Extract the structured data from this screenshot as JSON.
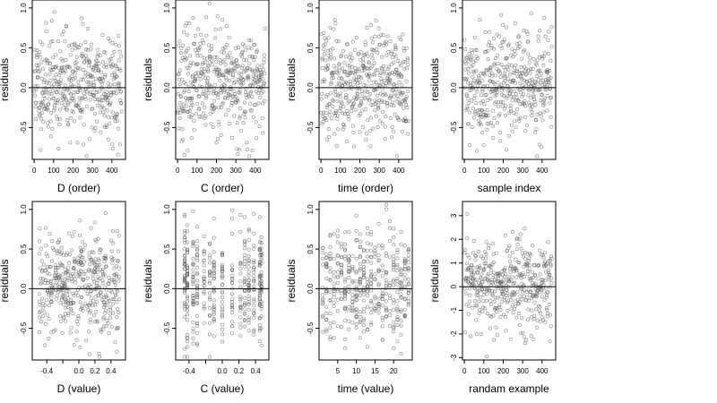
{
  "chart_data": [
    {
      "type": "scatter",
      "xlabel": "D (order)",
      "ylabel": "residuals",
      "xlim": [
        -10,
        470
      ],
      "ylim": [
        -0.9,
        1.1
      ],
      "xticks": [
        0,
        100,
        200,
        300,
        400
      ],
      "xtick_labels": [
        "0",
        "100",
        "200",
        "300",
        "400"
      ],
      "yticks": [
        -0.5,
        0,
        0.5,
        1.0
      ],
      "ytick_labels": [
        "-0.5",
        "0.0",
        "0.5",
        "1.0"
      ],
      "hline": 0,
      "points": {
        "n": 450,
        "xmode": "index",
        "ymean": 0.05,
        "ysd": 0.33,
        "seed": 11
      }
    },
    {
      "type": "scatter",
      "xlabel": "C (order)",
      "ylabel": "residuals",
      "xlim": [
        -10,
        470
      ],
      "ylim": [
        -0.9,
        1.1
      ],
      "xticks": [
        0,
        100,
        200,
        300,
        400
      ],
      "xtick_labels": [
        "0",
        "100",
        "200",
        "300",
        "400"
      ],
      "yticks": [
        -0.5,
        0,
        0.5,
        1.0
      ],
      "ytick_labels": [
        "-0.5",
        "0.0",
        "0.5",
        "1.0"
      ],
      "hline": 0,
      "points": {
        "n": 450,
        "xmode": "index",
        "ymean": 0.05,
        "ysd": 0.33,
        "seed": 23
      }
    },
    {
      "type": "scatter",
      "xlabel": "time (order)",
      "ylabel": "residuals",
      "xlim": [
        -10,
        470
      ],
      "ylim": [
        -0.9,
        1.1
      ],
      "xticks": [
        0,
        100,
        200,
        300,
        400
      ],
      "xtick_labels": [
        "0",
        "100",
        "200",
        "300",
        "400"
      ],
      "yticks": [
        -0.5,
        0,
        0.5,
        1.0
      ],
      "ytick_labels": [
        "-0.5",
        "0.0",
        "0.5",
        "1.0"
      ],
      "hline": 0,
      "points": {
        "n": 450,
        "xmode": "index",
        "ymean": 0.05,
        "ysd": 0.33,
        "seed": 37
      }
    },
    {
      "type": "scatter",
      "xlabel": "sample index",
      "ylabel": "residuals",
      "xlim": [
        -10,
        470
      ],
      "ylim": [
        -0.9,
        1.1
      ],
      "xticks": [
        0,
        100,
        200,
        300,
        400
      ],
      "xtick_labels": [
        "0",
        "100",
        "200",
        "300",
        "400"
      ],
      "yticks": [
        -0.5,
        0,
        0.5,
        1.0
      ],
      "ytick_labels": [
        "-0.5",
        "0.0",
        "0.5",
        "1.0"
      ],
      "hline": 0,
      "points": {
        "n": 450,
        "xmode": "index",
        "ymean": 0.05,
        "ysd": 0.33,
        "seed": 41
      }
    },
    {
      "type": "scatter",
      "xlabel": "D (value)",
      "ylabel": "residuals",
      "xlim": [
        -0.58,
        0.58
      ],
      "ylim": [
        -0.9,
        1.1
      ],
      "xticks": [
        -0.4,
        -0.2,
        0,
        0.2,
        0.4
      ],
      "xtick_labels": [
        "-0.4",
        "",
        "0.0",
        "0.2",
        "0.4"
      ],
      "yticks": [
        -0.5,
        0,
        0.5,
        1.0
      ],
      "ytick_labels": [
        "-0.5",
        "0.0",
        "0.5",
        "1.0"
      ],
      "hline": 0,
      "points": {
        "n": 450,
        "xmode": "uniform",
        "xrange": [
          -0.5,
          0.5
        ],
        "ymean": 0.05,
        "ysd": 0.33,
        "seed": 53
      }
    },
    {
      "type": "scatter",
      "xlabel": "C (value)",
      "ylabel": "residuals",
      "xlim": [
        -0.56,
        0.56
      ],
      "ylim": [
        -0.9,
        1.1
      ],
      "xticks": [
        -0.4,
        -0.2,
        0,
        0.2,
        0.4
      ],
      "xtick_labels": [
        "-0.4",
        "",
        "0.0",
        "0.2",
        "0.4"
      ],
      "yticks": [
        -0.5,
        0,
        0.5,
        1.0
      ],
      "ytick_labels": [
        "-0.5",
        "0.0",
        "0.5",
        "1.0"
      ],
      "hline": 0,
      "points": {
        "n": 450,
        "xmode": "discrete",
        "xvalues": [
          -0.45,
          -0.42,
          -0.35,
          -0.3,
          -0.22,
          -0.15,
          -0.1,
          0.0,
          0.12,
          0.22,
          0.27,
          0.32,
          0.38,
          0.45,
          0.47
        ],
        "ymean": 0.05,
        "ysd": 0.33,
        "seed": 67
      }
    },
    {
      "type": "scatter",
      "xlabel": "time (value)",
      "ylabel": "residuals",
      "xlim": [
        0,
        25
      ],
      "ylim": [
        -0.9,
        1.1
      ],
      "xticks": [
        5,
        10,
        15,
        20
      ],
      "xtick_labels": [
        "5",
        "10",
        "15",
        "20"
      ],
      "yticks": [
        -0.5,
        0,
        0.5,
        1.0
      ],
      "ytick_labels": [
        "-0.5",
        "0.0",
        "0.5",
        "1.0"
      ],
      "hline": 0,
      "points": {
        "n": 450,
        "xmode": "discrete",
        "xvalues": [
          1,
          2,
          3,
          4,
          5,
          6,
          7,
          8,
          9,
          10,
          11,
          12,
          13,
          14,
          15,
          16,
          17,
          18,
          19,
          20,
          21,
          22,
          23,
          24
        ],
        "ymean": 0.05,
        "ysd": 0.33,
        "seed": 79
      }
    },
    {
      "type": "scatter",
      "xlabel": "randam example",
      "ylabel": "residuals",
      "xlim": [
        -10,
        470
      ],
      "ylim": [
        -3.1,
        3.6
      ],
      "xticks": [
        0,
        100,
        200,
        300,
        400
      ],
      "xtick_labels": [
        "0",
        "100",
        "200",
        "300",
        "400"
      ],
      "yticks": [
        -3,
        -2,
        -1,
        0,
        1,
        2,
        3
      ],
      "ytick_labels": [
        "-3",
        "-2",
        "-1",
        "0",
        "1",
        "2",
        "3"
      ],
      "hline": 0,
      "points": {
        "n": 450,
        "xmode": "index",
        "ymean": 0.0,
        "ysd": 1.0,
        "seed": 97
      }
    }
  ]
}
